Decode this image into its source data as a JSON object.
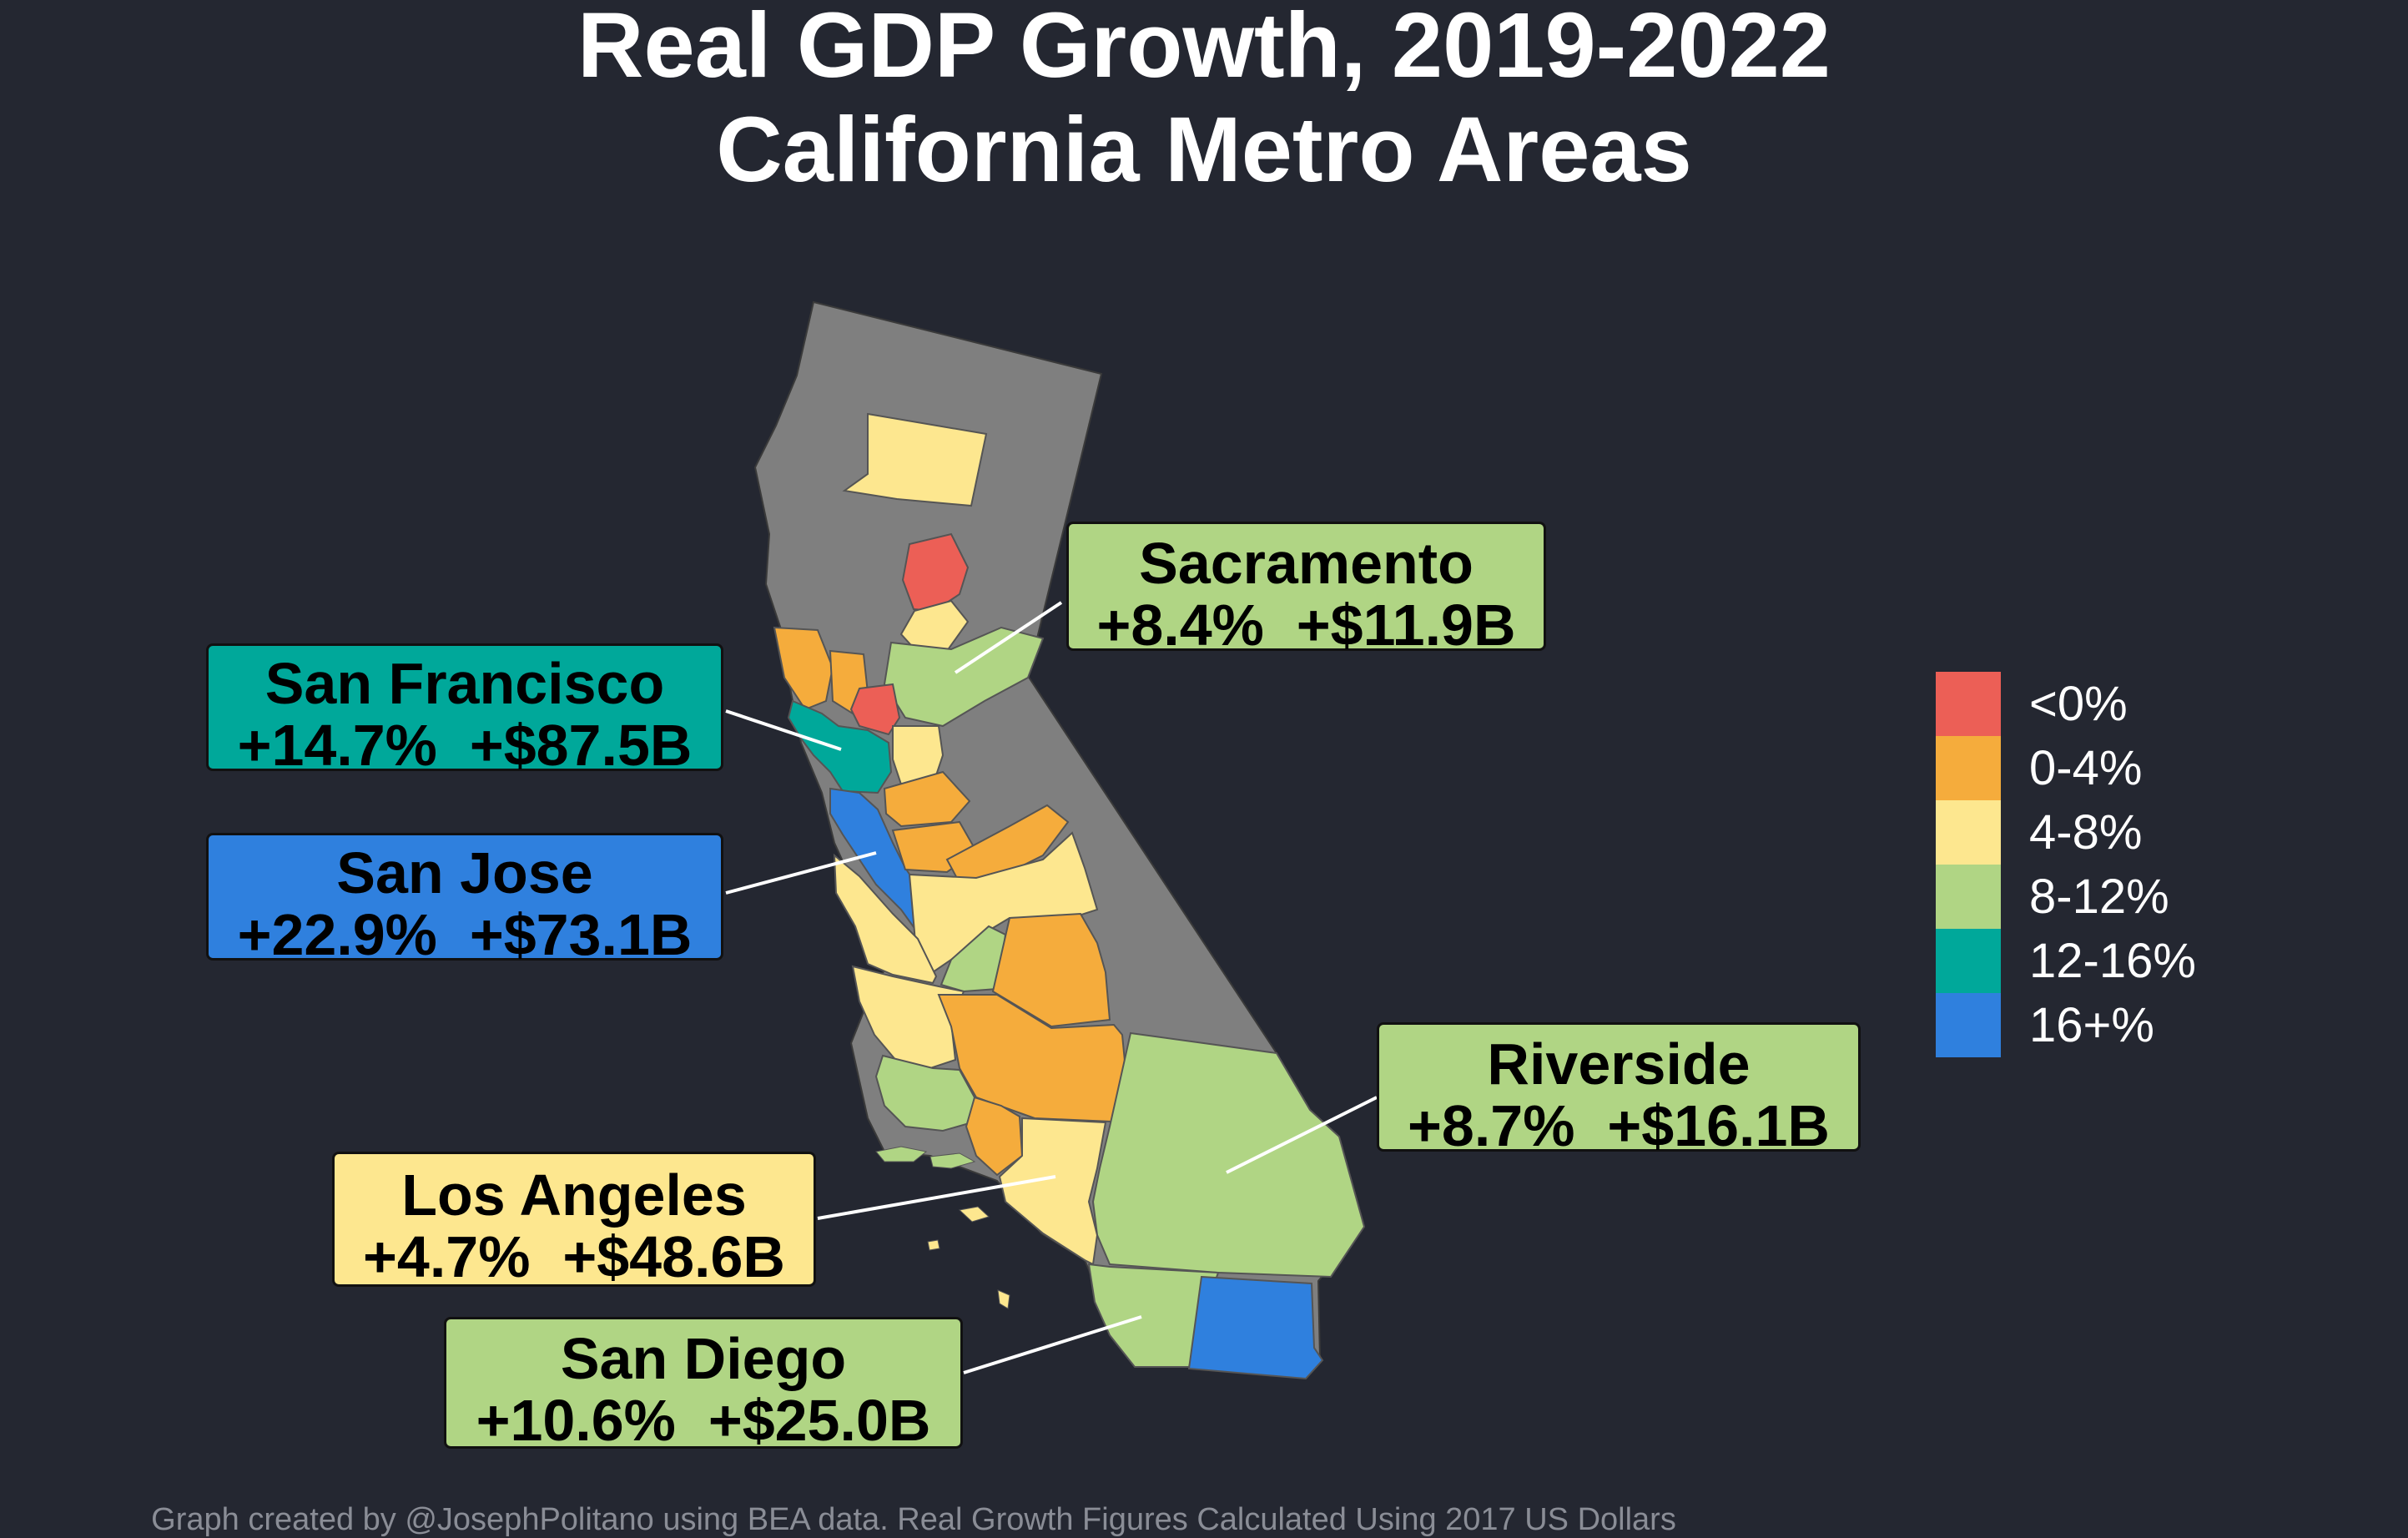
{
  "title": {
    "line1": "Real GDP Growth, 2019-2022",
    "line2": "California Metro Areas"
  },
  "colors": {
    "background": "#242731",
    "state_fill": "#7f7f7f",
    "lt0": "#ec5f56",
    "g0_4": "#f5ac3c",
    "g4_8": "#fde78f",
    "g8_12": "#b0d584",
    "g12_16": "#00a89a",
    "g16p": "#2f80de"
  },
  "legend": [
    {
      "label": "<0%",
      "color": "#ec5f56"
    },
    {
      "label": "0-4%",
      "color": "#f5ac3c"
    },
    {
      "label": "4-8%",
      "color": "#fde78f"
    },
    {
      "label": "8-12%",
      "color": "#b0d584"
    },
    {
      "label": "12-16%",
      "color": "#00a89a"
    },
    {
      "label": "16+%",
      "color": "#2f80de"
    }
  ],
  "callouts": {
    "sacramento": {
      "name": "Sacramento",
      "stats": "+8.4%  +$11.9B",
      "category": "8-12%",
      "color": "#b0d584"
    },
    "san_francisco": {
      "name": "San Francisco",
      "stats": "+14.7%  +$87.5B",
      "category": "12-16%",
      "color": "#00a89a"
    },
    "san_jose": {
      "name": "San Jose",
      "stats": "+22.9%  +$73.1B",
      "category": "16+%",
      "color": "#2f80de"
    },
    "riverside": {
      "name": "Riverside",
      "stats": "+8.7%  +$16.1B",
      "category": "8-12%",
      "color": "#b0d584"
    },
    "los_angeles": {
      "name": "Los Angeles",
      "stats": "+4.7%  +$48.6B",
      "category": "4-8%",
      "color": "#fde78f"
    },
    "san_diego": {
      "name": "San Diego",
      "stats": "+10.6%  +$25.0B",
      "category": "8-12%",
      "color": "#b0d584"
    }
  },
  "footer": "Graph created by @JosephPolitano using BEA data. Real Growth Figures Calculated Using 2017 US Dollars"
}
